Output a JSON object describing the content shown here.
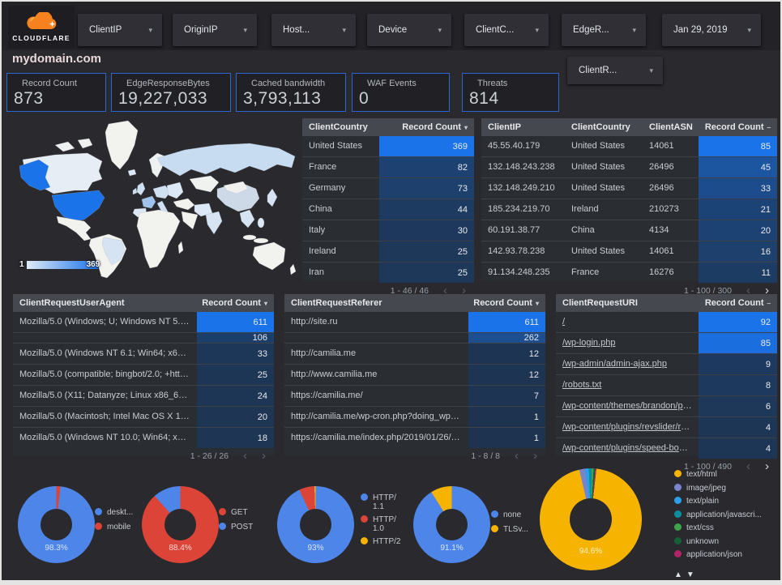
{
  "brand": {
    "logo_text": "CLOUDFLARE"
  },
  "title": "mydomain.com",
  "filters": [
    {
      "label": "ClientIP"
    },
    {
      "label": "OriginIP"
    },
    {
      "label": "Host..."
    },
    {
      "label": "Device"
    },
    {
      "label": "ClientC..."
    },
    {
      "label": "EdgeR..."
    }
  ],
  "date_filter": "Jan 29, 2019",
  "filters_row2": [
    {
      "label": "ClientR..."
    }
  ],
  "scorecards": [
    {
      "label": "Record Count",
      "value": "873"
    },
    {
      "label": "EdgeResponseBytes",
      "value": "19,227,033"
    },
    {
      "label": "Cached bandwidth",
      "value": "3,793,113"
    },
    {
      "label": "WAF Events",
      "value": "0"
    },
    {
      "label": "Threats",
      "value": "814"
    }
  ],
  "map": {
    "scale_min": "1",
    "scale_max": "369",
    "highlight_color": "#1a73e8"
  },
  "ui": {
    "chevron_left": "‹",
    "chevron_right": "›",
    "legend_up": "▲",
    "legend_down": "▼"
  },
  "tables": [
    {
      "name": "client-country",
      "columns": [
        "ClientCountry",
        "Record Count"
      ],
      "sort_icon": "▾",
      "max": 369,
      "rows": [
        [
          "United States",
          369
        ],
        [
          "France",
          82
        ],
        [
          "Germany",
          73
        ],
        [
          "China",
          44
        ],
        [
          "Italy",
          30
        ],
        [
          "Ireland",
          25
        ],
        [
          "Iran",
          25
        ]
      ],
      "pagination": {
        "label": "1 - 46 / 46",
        "prev_enabled": false,
        "next_enabled": false
      }
    },
    {
      "name": "client-ip",
      "columns": [
        "ClientIP",
        "ClientCountry",
        "ClientASN",
        "Record Count"
      ],
      "sort_icon": "‒",
      "max": 85,
      "rows": [
        [
          "45.55.40.179",
          "United States",
          "14061",
          85
        ],
        [
          "132.148.243.238",
          "United States",
          "26496",
          45
        ],
        [
          "132.148.249.210",
          "United States",
          "26496",
          33
        ],
        [
          "185.234.219.70",
          "Ireland",
          "210273",
          21
        ],
        [
          "60.191.38.77",
          "China",
          "4134",
          20
        ],
        [
          "142.93.78.238",
          "United States",
          "14061",
          16
        ],
        [
          "91.134.248.235",
          "France",
          "16276",
          11
        ]
      ],
      "pagination": {
        "label": "1 - 100 / 300",
        "prev_enabled": false,
        "next_enabled": true
      }
    },
    {
      "name": "client-request-user-agent",
      "columns": [
        "ClientRequestUserAgent",
        "Record Count"
      ],
      "sort_icon": "▾",
      "max": 611,
      "rows": [
        [
          "Mozilla/5.0 (Windows; U; Windows NT 5.1; en-U...",
          611
        ],
        [
          "",
          106
        ],
        [
          "Mozilla/5.0 (Windows NT 6.1; Win64; x64; rv:64...",
          33
        ],
        [
          "Mozilla/5.0 (compatible; bingbot/2.0; +http://w...",
          25
        ],
        [
          "Mozilla/5.0 (X11; Datanyze; Linux x86_64) Appl...",
          24
        ],
        [
          "Mozilla/5.0 (Macintosh; Intel Mac OS X 10.11; r...",
          20
        ],
        [
          "Mozilla/5.0 (Windows NT 10.0; Win64; x64) App...",
          18
        ]
      ],
      "pagination": {
        "label": "1 - 26 / 26",
        "prev_enabled": false,
        "next_enabled": false
      }
    },
    {
      "name": "client-request-referer",
      "columns": [
        "ClientRequestReferer",
        "Record Count"
      ],
      "sort_icon": "▾",
      "max": 611,
      "rows": [
        [
          "http://site.ru",
          611
        ],
        [
          "",
          262
        ],
        [
          "http://camilia.me",
          12
        ],
        [
          "http://www.camilia.me",
          12
        ],
        [
          "https://camilia.me/",
          7
        ],
        [
          "http://camilia.me/wp-cron.php?doing_wp_cron...",
          1
        ],
        [
          "https://camilia.me/index.php/2019/01/26/stor...",
          1
        ]
      ],
      "pagination": {
        "label": "1 - 8 / 8",
        "prev_enabled": false,
        "next_enabled": false
      }
    },
    {
      "name": "client-request-uri",
      "columns": [
        "ClientRequestURI",
        "Record Count"
      ],
      "sort_icon": "‒",
      "max": 92,
      "links": true,
      "rows": [
        [
          "/",
          92
        ],
        [
          "/wp-login.php",
          85
        ],
        [
          "/wp-admin/admin-ajax.php",
          9
        ],
        [
          "/robots.txt",
          8
        ],
        [
          "/wp-content/themes/brandon/plu...",
          6
        ],
        [
          "/wp-content/plugins/revslider/rs-p...",
          4
        ],
        [
          "/wp-content/plugins/speed-booste...",
          4
        ]
      ],
      "pagination": {
        "label": "1 - 100 / 490",
        "prev_enabled": false,
        "next_enabled": true
      }
    }
  ],
  "donuts": [
    {
      "name": "device-type",
      "pct_label": "98.3%",
      "start_deg": 0,
      "slices": [
        {
          "label": "mobile",
          "color": "#db4437",
          "pct": 1.7
        },
        {
          "label": "desktop",
          "color": "#4d85e8",
          "pct": 98.3
        }
      ],
      "legend": [
        {
          "label": "deskt...",
          "color": "#4d85e8"
        },
        {
          "label": "mobile",
          "color": "#db4437"
        }
      ]
    },
    {
      "name": "request-method",
      "pct_label": "88.4%",
      "start_deg": 0,
      "slices": [
        {
          "label": "GET",
          "color": "#db4437",
          "pct": 88.4
        },
        {
          "label": "POST",
          "color": "#4d85e8",
          "pct": 11.6
        }
      ],
      "legend": [
        {
          "label": "GET",
          "color": "#db4437"
        },
        {
          "label": "POST",
          "color": "#4d85e8"
        }
      ]
    },
    {
      "name": "http-version",
      "pct_label": "93%",
      "start_deg": 0,
      "slices": [
        {
          "label": "HTTP/1.1",
          "color": "#4d85e8",
          "pct": 93
        },
        {
          "label": "HTTP/1.0",
          "color": "#db4437",
          "pct": 6.5
        },
        {
          "label": "HTTP/2",
          "color": "#f6b400",
          "pct": 0.5
        }
      ],
      "legend": [
        {
          "lines": [
            "HTTP/",
            "1.1"
          ],
          "color": "#4d85e8"
        },
        {
          "lines": [
            "HTTP/",
            "1.0"
          ],
          "color": "#db4437"
        },
        {
          "label": "HTTP/2",
          "color": "#f6b400"
        }
      ]
    },
    {
      "name": "tls-version",
      "pct_label": "91.1%",
      "start_deg": 0,
      "slices": [
        {
          "label": "none",
          "color": "#4d85e8",
          "pct": 91.1
        },
        {
          "label": "TLSv...",
          "color": "#f6b400",
          "pct": 8.9
        }
      ],
      "legend": [
        {
          "label": "none",
          "color": "#4d85e8"
        },
        {
          "label": "TLSv...",
          "color": "#f6b400"
        }
      ]
    },
    {
      "name": "content-type",
      "pct_label": "94.6%",
      "start_deg": -13,
      "legend_pager": true,
      "slices": [
        {
          "label": "image/jpeg",
          "color": "#7b83cf",
          "pct": 1.8
        },
        {
          "label": "text/plain",
          "color": "#2d9fe8",
          "pct": 1.2
        },
        {
          "label": "application/javascri...",
          "color": "#0b8f9c",
          "pct": 0.9
        },
        {
          "label": "text/css",
          "color": "#3ea34b",
          "pct": 0.6
        },
        {
          "label": "unknown",
          "color": "#15603a",
          "pct": 0.5
        },
        {
          "label": "application/json",
          "color": "#b02565",
          "pct": 0.4
        },
        {
          "label": "text/html",
          "color": "#f6b400",
          "pct": 94.6
        }
      ],
      "legend": [
        {
          "label": "text/html",
          "color": "#f6b400"
        },
        {
          "label": "image/jpeg",
          "color": "#7b83cf"
        },
        {
          "label": "text/plain",
          "color": "#2d9fe8"
        },
        {
          "label": "application/javascri...",
          "color": "#0b8f9c"
        },
        {
          "label": "text/css",
          "color": "#3ea34b"
        },
        {
          "label": "unknown",
          "color": "#15603a"
        },
        {
          "label": "application/json",
          "color": "#b02565"
        }
      ]
    }
  ]
}
